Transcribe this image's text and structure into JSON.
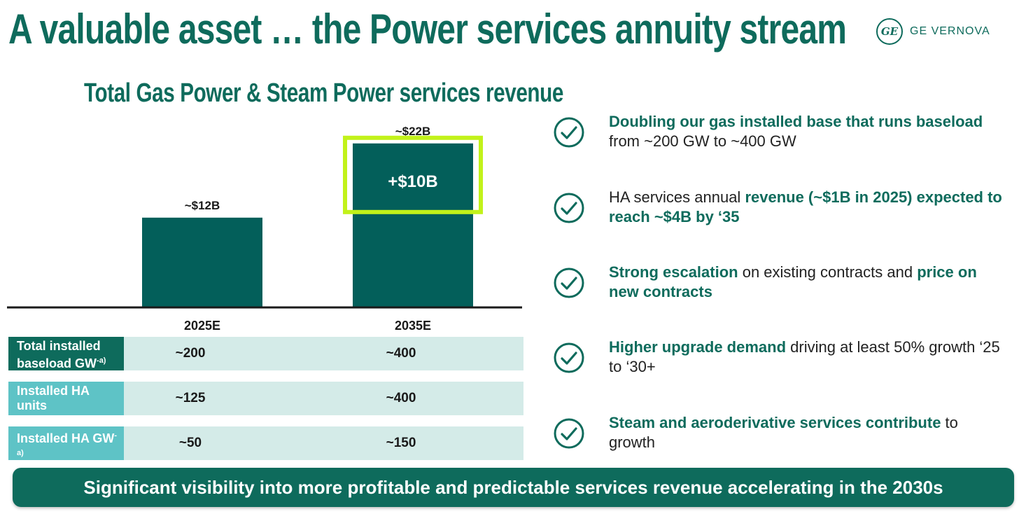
{
  "header": {
    "title": "A valuable asset … the Power services annuity stream",
    "logo_mark": "GE",
    "logo_text": "GE VERNOVA"
  },
  "chart_data": {
    "type": "bar",
    "title": "Total Gas Power & Steam Power services revenue",
    "categories": [
      "2025E",
      "2035E"
    ],
    "values": [
      12,
      22
    ],
    "value_labels": [
      "~$12B",
      "~$22B"
    ],
    "increment": {
      "category": "2035E",
      "value": 10,
      "label": "+$10B"
    },
    "unit": "$B",
    "ylim": [
      0,
      24
    ],
    "grid": false,
    "legend": "none",
    "colors": {
      "bar": "#035f5a",
      "highlight": "#c2f21a",
      "axis": "#1a1a1a"
    }
  },
  "table": {
    "rows": [
      {
        "label": "Total installed baseload GW",
        "sup": "-a)",
        "values": [
          "~200",
          "~400"
        ],
        "style": "dark"
      },
      {
        "label": "Installed HA units",
        "sup": "",
        "values": [
          "~125",
          "~400"
        ],
        "style": "light"
      },
      {
        "label": "Installed HA GW",
        "sup": "-a)",
        "values": [
          "~50",
          "~150"
        ],
        "style": "light"
      }
    ]
  },
  "bullets": [
    {
      "segments": [
        {
          "text": "Doubling our gas installed base that runs baseload",
          "bold": true
        },
        {
          "text": " from ~200 GW to ~400 GW",
          "bold": false
        }
      ]
    },
    {
      "segments": [
        {
          "text": "HA services annual ",
          "bold": false
        },
        {
          "text": "revenue (~$1B in 2025) expected to reach ~$4B by ‘35",
          "bold": true
        }
      ]
    },
    {
      "segments": [
        {
          "text": "Strong escalation",
          "bold": true
        },
        {
          "text": " on existing contracts and ",
          "bold": false
        },
        {
          "text": "price on new contracts",
          "bold": true
        }
      ]
    },
    {
      "segments": [
        {
          "text": "Higher upgrade demand",
          "bold": true
        },
        {
          "text": " driving at least 50% growth ‘25 to ‘30+",
          "bold": false
        }
      ]
    },
    {
      "segments": [
        {
          "text": "Steam and aeroderivative services contribute",
          "bold": true
        },
        {
          "text": " to growth",
          "bold": false
        }
      ]
    }
  ],
  "icons": {
    "bullet_icon": "check-circle-icon",
    "logo_icon": "ge-monogram-icon"
  },
  "footer": {
    "text": "Significant visibility into more profitable and predictable services revenue accelerating in the 2030s"
  }
}
